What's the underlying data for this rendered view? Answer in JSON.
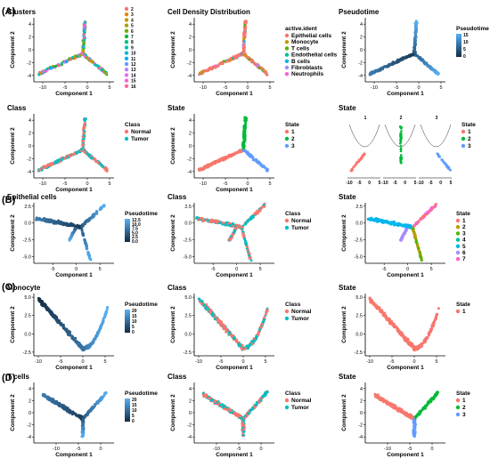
{
  "figure": {
    "panel_labels": [
      "(A)",
      "(B)",
      "(C)",
      "(D)"
    ],
    "colors": {
      "pseudotime_low": "#132b43",
      "pseudotime_high": "#56b1f7",
      "normal": "#f8766d",
      "tumor": "#00bfc4",
      "state_1": "#f8766d",
      "state_2": "#00ba38",
      "state_3": "#619cff"
    }
  },
  "chart_data": [
    {
      "id": "a1",
      "type": "scatter",
      "title": "Clusters",
      "xlabel": "Component 1",
      "ylabel": "Component 2",
      "xticks": [
        "-10",
        "-5",
        "0",
        "5"
      ],
      "yticks": [
        "-4",
        "-2",
        "0",
        "2",
        "4"
      ],
      "xlim": [
        -12,
        6
      ],
      "ylim": [
        -5,
        5
      ],
      "legend_title": "",
      "legend": [
        "2",
        "3",
        "4",
        "5",
        "6",
        "7",
        "8",
        "9",
        "10",
        "11",
        "12",
        "13",
        "14",
        "15",
        "16"
      ],
      "legend_colors": [
        "#f8766d",
        "#e58700",
        "#c99800",
        "#a3a500",
        "#6bb100",
        "#00ba38",
        "#00bf7d",
        "#00c0af",
        "#00bcd8",
        "#00b0f6",
        "#619cff",
        "#b983ff",
        "#e76bf3",
        "#fd61d1",
        "#ff67a4"
      ],
      "shape": "trajectory",
      "color_by": "cluster"
    },
    {
      "id": "a2",
      "type": "scatter",
      "title": "Cell Density Distribution",
      "xlabel": "Component 1",
      "ylabel": "Component 2",
      "xticks": [
        "-10",
        "-5",
        "0",
        "5"
      ],
      "yticks": [
        "-4",
        "-2",
        "0",
        "2",
        "4"
      ],
      "xlim": [
        -12,
        6
      ],
      "ylim": [
        -5,
        5
      ],
      "legend_title": "active.ident",
      "legend": [
        "Epithelial cells",
        "Monocyte",
        "T cells",
        "Endothelial cells",
        "B cells",
        "Fibroblasts",
        "Neutrophils"
      ],
      "legend_colors": [
        "#f8766d",
        "#c49a00",
        "#53b400",
        "#00c094",
        "#00b6eb",
        "#a58aff",
        "#fb61d7"
      ],
      "shape": "trajectory",
      "color_by": "celltype"
    },
    {
      "id": "a3",
      "type": "scatter",
      "title": "Pseudotime",
      "xlabel": "Component 1",
      "ylabel": "Component 2",
      "xticks": [
        "-10",
        "-5",
        "0",
        "5"
      ],
      "yticks": [
        "-4",
        "-2",
        "0",
        "2",
        "4"
      ],
      "xlim": [
        -12,
        6
      ],
      "ylim": [
        -5,
        5
      ],
      "legend_title": "Pseudotime",
      "gradient_ticks": [
        "15",
        "10",
        "5",
        "0"
      ],
      "shape": "trajectory",
      "color_by": "pseudotime"
    },
    {
      "id": "a4",
      "type": "scatter",
      "title": "Class",
      "xlabel": "Component 1",
      "ylabel": "Component 2",
      "xticks": [
        "-10",
        "-5",
        "0",
        "5"
      ],
      "yticks": [
        "-4",
        "-2",
        "0",
        "2",
        "4"
      ],
      "xlim": [
        -12,
        6
      ],
      "ylim": [
        -5,
        5
      ],
      "legend_title": "Class",
      "legend": [
        "Normal",
        "Tumor"
      ],
      "legend_colors": [
        "#f8766d",
        "#00bfc4"
      ],
      "shape": "trajectory",
      "color_by": "class"
    },
    {
      "id": "a5",
      "type": "scatter",
      "title": "State",
      "xlabel": "Component 1",
      "ylabel": "Component 2",
      "xticks": [
        "-10",
        "-5",
        "0",
        "5"
      ],
      "yticks": [
        "-4",
        "-2",
        "0",
        "2",
        "4"
      ],
      "xlim": [
        -12,
        6
      ],
      "ylim": [
        -5,
        5
      ],
      "legend_title": "State",
      "legend": [
        "1",
        "2",
        "3"
      ],
      "legend_colors": [
        "#f8766d",
        "#00ba38",
        "#619cff"
      ],
      "shape": "trajectory",
      "color_by": "state"
    },
    {
      "id": "a6",
      "type": "scatter",
      "title": "State",
      "facets": [
        "1",
        "2",
        "3"
      ],
      "xticks": [
        "-10",
        "-5",
        "0",
        "5"
      ],
      "legend_title": "State",
      "legend": [
        "1",
        "2",
        "3"
      ],
      "legend_colors": [
        "#f8766d",
        "#00ba38",
        "#619cff"
      ],
      "shape": "faceted",
      "color_by": "state"
    },
    {
      "id": "b1",
      "type": "scatter",
      "title": "Epithelial cells",
      "xlabel": "Component 1",
      "ylabel": "Component 2",
      "xticks": [
        "-5",
        "0",
        "5"
      ],
      "yticks": [
        "-5.0",
        "-2.5",
        "0.0",
        "2.5"
      ],
      "xlim": [
        -9,
        8
      ],
      "ylim": [
        -6,
        3
      ],
      "legend_title": "Pseudotime",
      "gradient_ticks": [
        "12.5",
        "10.0",
        "7.5",
        "5.0",
        "2.5",
        "0.0"
      ],
      "shape": "epi",
      "color_by": "pseudotime"
    },
    {
      "id": "b2",
      "type": "scatter",
      "title": "Class",
      "xlabel": "Component 1",
      "ylabel": "Component 2",
      "xticks": [
        "-5",
        "0",
        "5"
      ],
      "yticks": [
        "-5.0",
        "-2.5",
        "0.0",
        "2.5"
      ],
      "xlim": [
        -9,
        8
      ],
      "ylim": [
        -6,
        3
      ],
      "legend_title": "Class",
      "legend": [
        "Normal",
        "Tumor"
      ],
      "legend_colors": [
        "#f8766d",
        "#00bfc4"
      ],
      "shape": "epi",
      "color_by": "class"
    },
    {
      "id": "b3",
      "type": "scatter",
      "title": "State",
      "xlabel": "Component 1",
      "ylabel": "Component 2",
      "xticks": [
        "-5",
        "0",
        "5"
      ],
      "yticks": [
        "-5.0",
        "-2.5",
        "0.0",
        "2.5"
      ],
      "xlim": [
        -9,
        8
      ],
      "ylim": [
        -6,
        3
      ],
      "legend_title": "State",
      "legend": [
        "1",
        "2",
        "3",
        "4",
        "5",
        "6",
        "7"
      ],
      "legend_colors": [
        "#f8766d",
        "#c49a00",
        "#53b400",
        "#00c094",
        "#00b6eb",
        "#a58aff",
        "#fb61d7"
      ],
      "shape": "epi",
      "color_by": "state7"
    },
    {
      "id": "c1",
      "type": "scatter",
      "title": "Monocyte",
      "xlabel": "Component 1",
      "ylabel": "Component 2",
      "xticks": [
        "-10",
        "-5",
        "0",
        "5"
      ],
      "yticks": [
        "-2.5",
        "0.0",
        "2.5",
        "5.0"
      ],
      "xlim": [
        -11,
        7
      ],
      "ylim": [
        -3,
        5.5
      ],
      "legend_title": "Pseudotime",
      "gradient_ticks": [
        "20",
        "15",
        "10",
        "5",
        "0"
      ],
      "shape": "vee",
      "color_by": "pseudotime_rev"
    },
    {
      "id": "c2",
      "type": "scatter",
      "title": "Class",
      "xlabel": "Component 1",
      "ylabel": "Component 2",
      "xticks": [
        "-10",
        "-5",
        "0",
        "5"
      ],
      "yticks": [
        "-2.5",
        "0.0",
        "2.5",
        "5.0"
      ],
      "xlim": [
        -11,
        7
      ],
      "ylim": [
        -3,
        5.5
      ],
      "legend_title": "Class",
      "legend": [
        "Normal",
        "Tumor"
      ],
      "legend_colors": [
        "#f8766d",
        "#00bfc4"
      ],
      "shape": "vee",
      "color_by": "class"
    },
    {
      "id": "c3",
      "type": "scatter",
      "title": "State",
      "xlabel": "Component 1",
      "ylabel": "Component 2",
      "xticks": [
        "-10",
        "-5",
        "0",
        "5"
      ],
      "yticks": [
        "-2.5",
        "0.0",
        "2.5",
        "5.0"
      ],
      "xlim": [
        -11,
        7
      ],
      "ylim": [
        -3,
        5.5
      ],
      "legend_title": "State",
      "legend": [
        "1"
      ],
      "legend_colors": [
        "#f8766d"
      ],
      "shape": "vee",
      "color_by": "state_one"
    },
    {
      "id": "d1",
      "type": "scatter",
      "title": "T cells",
      "xlabel": "Component 1",
      "ylabel": "Component 2",
      "xticks": [
        "-10",
        "-5",
        "0"
      ],
      "yticks": [
        "-4",
        "-2",
        "0",
        "2",
        "4"
      ],
      "xlim": [
        -15,
        3
      ],
      "ylim": [
        -5,
        5
      ],
      "legend_title": "Pseudotime",
      "gradient_ticks": [
        "20",
        "15",
        "10",
        "5",
        "0"
      ],
      "shape": "tcell",
      "color_by": "pseudotime"
    },
    {
      "id": "d2",
      "type": "scatter",
      "title": "Class",
      "xlabel": "Component 1",
      "ylabel": "Component 2",
      "xticks": [
        "-10",
        "-5",
        "0"
      ],
      "yticks": [
        "-4",
        "-2",
        "0",
        "2",
        "4"
      ],
      "xlim": [
        -15,
        3
      ],
      "ylim": [
        -5,
        5
      ],
      "legend_title": "Class",
      "legend": [
        "Normal",
        "Tumor"
      ],
      "legend_colors": [
        "#f8766d",
        "#00bfc4"
      ],
      "shape": "tcell",
      "color_by": "class"
    },
    {
      "id": "d3",
      "type": "scatter",
      "title": "State",
      "xlabel": "Component 1",
      "ylabel": "Component 2",
      "xticks": [
        "-10",
        "-5",
        "0"
      ],
      "yticks": [
        "-4",
        "-2",
        "0",
        "2",
        "4"
      ],
      "xlim": [
        -15,
        3
      ],
      "ylim": [
        -5,
        5
      ],
      "legend_title": "State",
      "legend": [
        "1",
        "2",
        "3"
      ],
      "legend_colors": [
        "#f8766d",
        "#00ba38",
        "#619cff"
      ],
      "shape": "tcell",
      "color_by": "state"
    }
  ]
}
